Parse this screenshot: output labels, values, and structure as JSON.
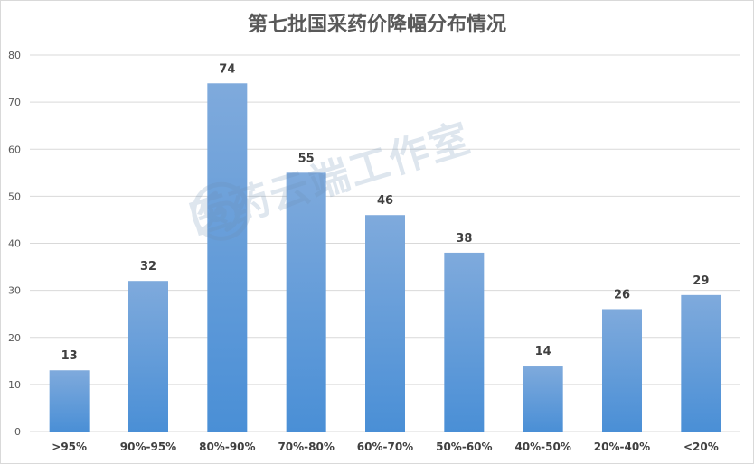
{
  "chart_data": {
    "type": "bar",
    "title": "第七批国采药价降幅分布情况",
    "categories": [
      ">95%",
      "90%-95%",
      "80%-90%",
      "70%-80%",
      "60%-70%",
      "50%-60%",
      "40%-50%",
      "20%-40%",
      "<20%"
    ],
    "values": [
      13,
      32,
      74,
      55,
      46,
      38,
      14,
      26,
      29
    ],
    "yticks": [
      0,
      10,
      20,
      30,
      40,
      50,
      60,
      70,
      80
    ],
    "ylim": [
      0,
      80
    ],
    "xlabel": "",
    "ylabel": "",
    "grid": true,
    "bar_color_top": "#7faadc",
    "bar_color_bottom": "#4a8fd6",
    "gridline_color": "#d9d9d9"
  },
  "watermark": {
    "text": "医药云端工作室",
    "icon": "seal-icon"
  }
}
